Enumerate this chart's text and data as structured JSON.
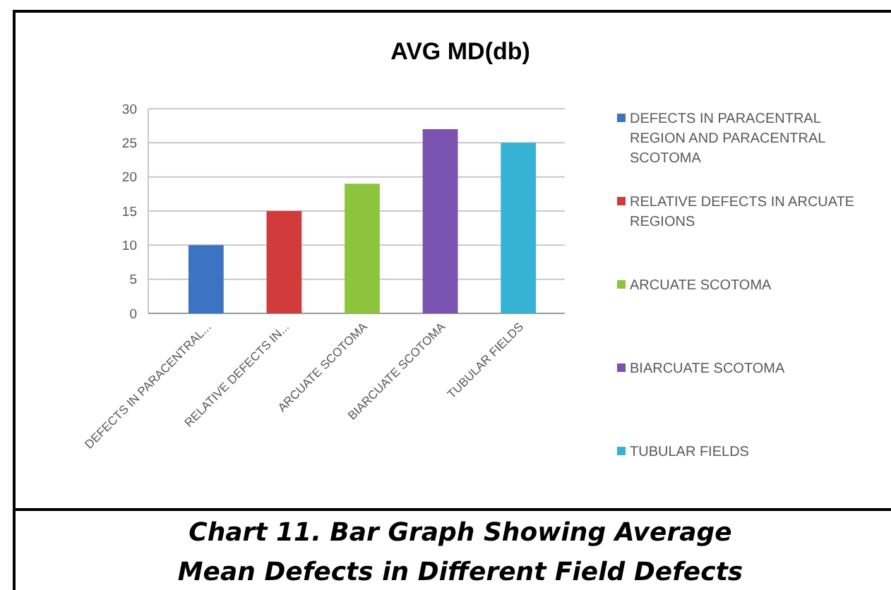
{
  "chart_data": {
    "type": "bar",
    "title": "AVG MD(db)",
    "categories": [
      "DEFECTS IN PARACENTRAL...",
      "RELATIVE DEFECTS IN...",
      "ARCUATE SCOTOMA",
      "BIARCUATE SCOTOMA",
      "TUBULAR FIELDS"
    ],
    "series": [
      {
        "name": "DEFECTS IN PARACENTRAL REGION AND PARACENTRAL SCOTOMA",
        "color": "#3b74c2",
        "values": [
          10,
          null,
          null,
          null,
          null
        ]
      },
      {
        "name": "RELATIVE DEFECTS IN ARCUATE REGIONS",
        "color": "#d13b3b",
        "values": [
          null,
          15,
          null,
          null,
          null
        ]
      },
      {
        "name": "ARCUATE SCOTOMA",
        "color": "#8cc43c",
        "values": [
          null,
          null,
          19,
          null,
          null
        ]
      },
      {
        "name": "BIARCUATE SCOTOMA",
        "color": "#7a52b0",
        "values": [
          null,
          null,
          null,
          27,
          null
        ]
      },
      {
        "name": "TUBULAR FIELDS",
        "color": "#36b2d4",
        "values": [
          null,
          null,
          null,
          null,
          25
        ]
      }
    ],
    "stacked": true,
    "ylim": [
      0,
      30
    ],
    "yticks": [
      0,
      5,
      10,
      15,
      20,
      25,
      30
    ],
    "grid": "y",
    "legend": "right",
    "annotations": [
      "Chart 11. Bar Graph Showing Average",
      "Mean Defects in Different Field Defects"
    ]
  }
}
